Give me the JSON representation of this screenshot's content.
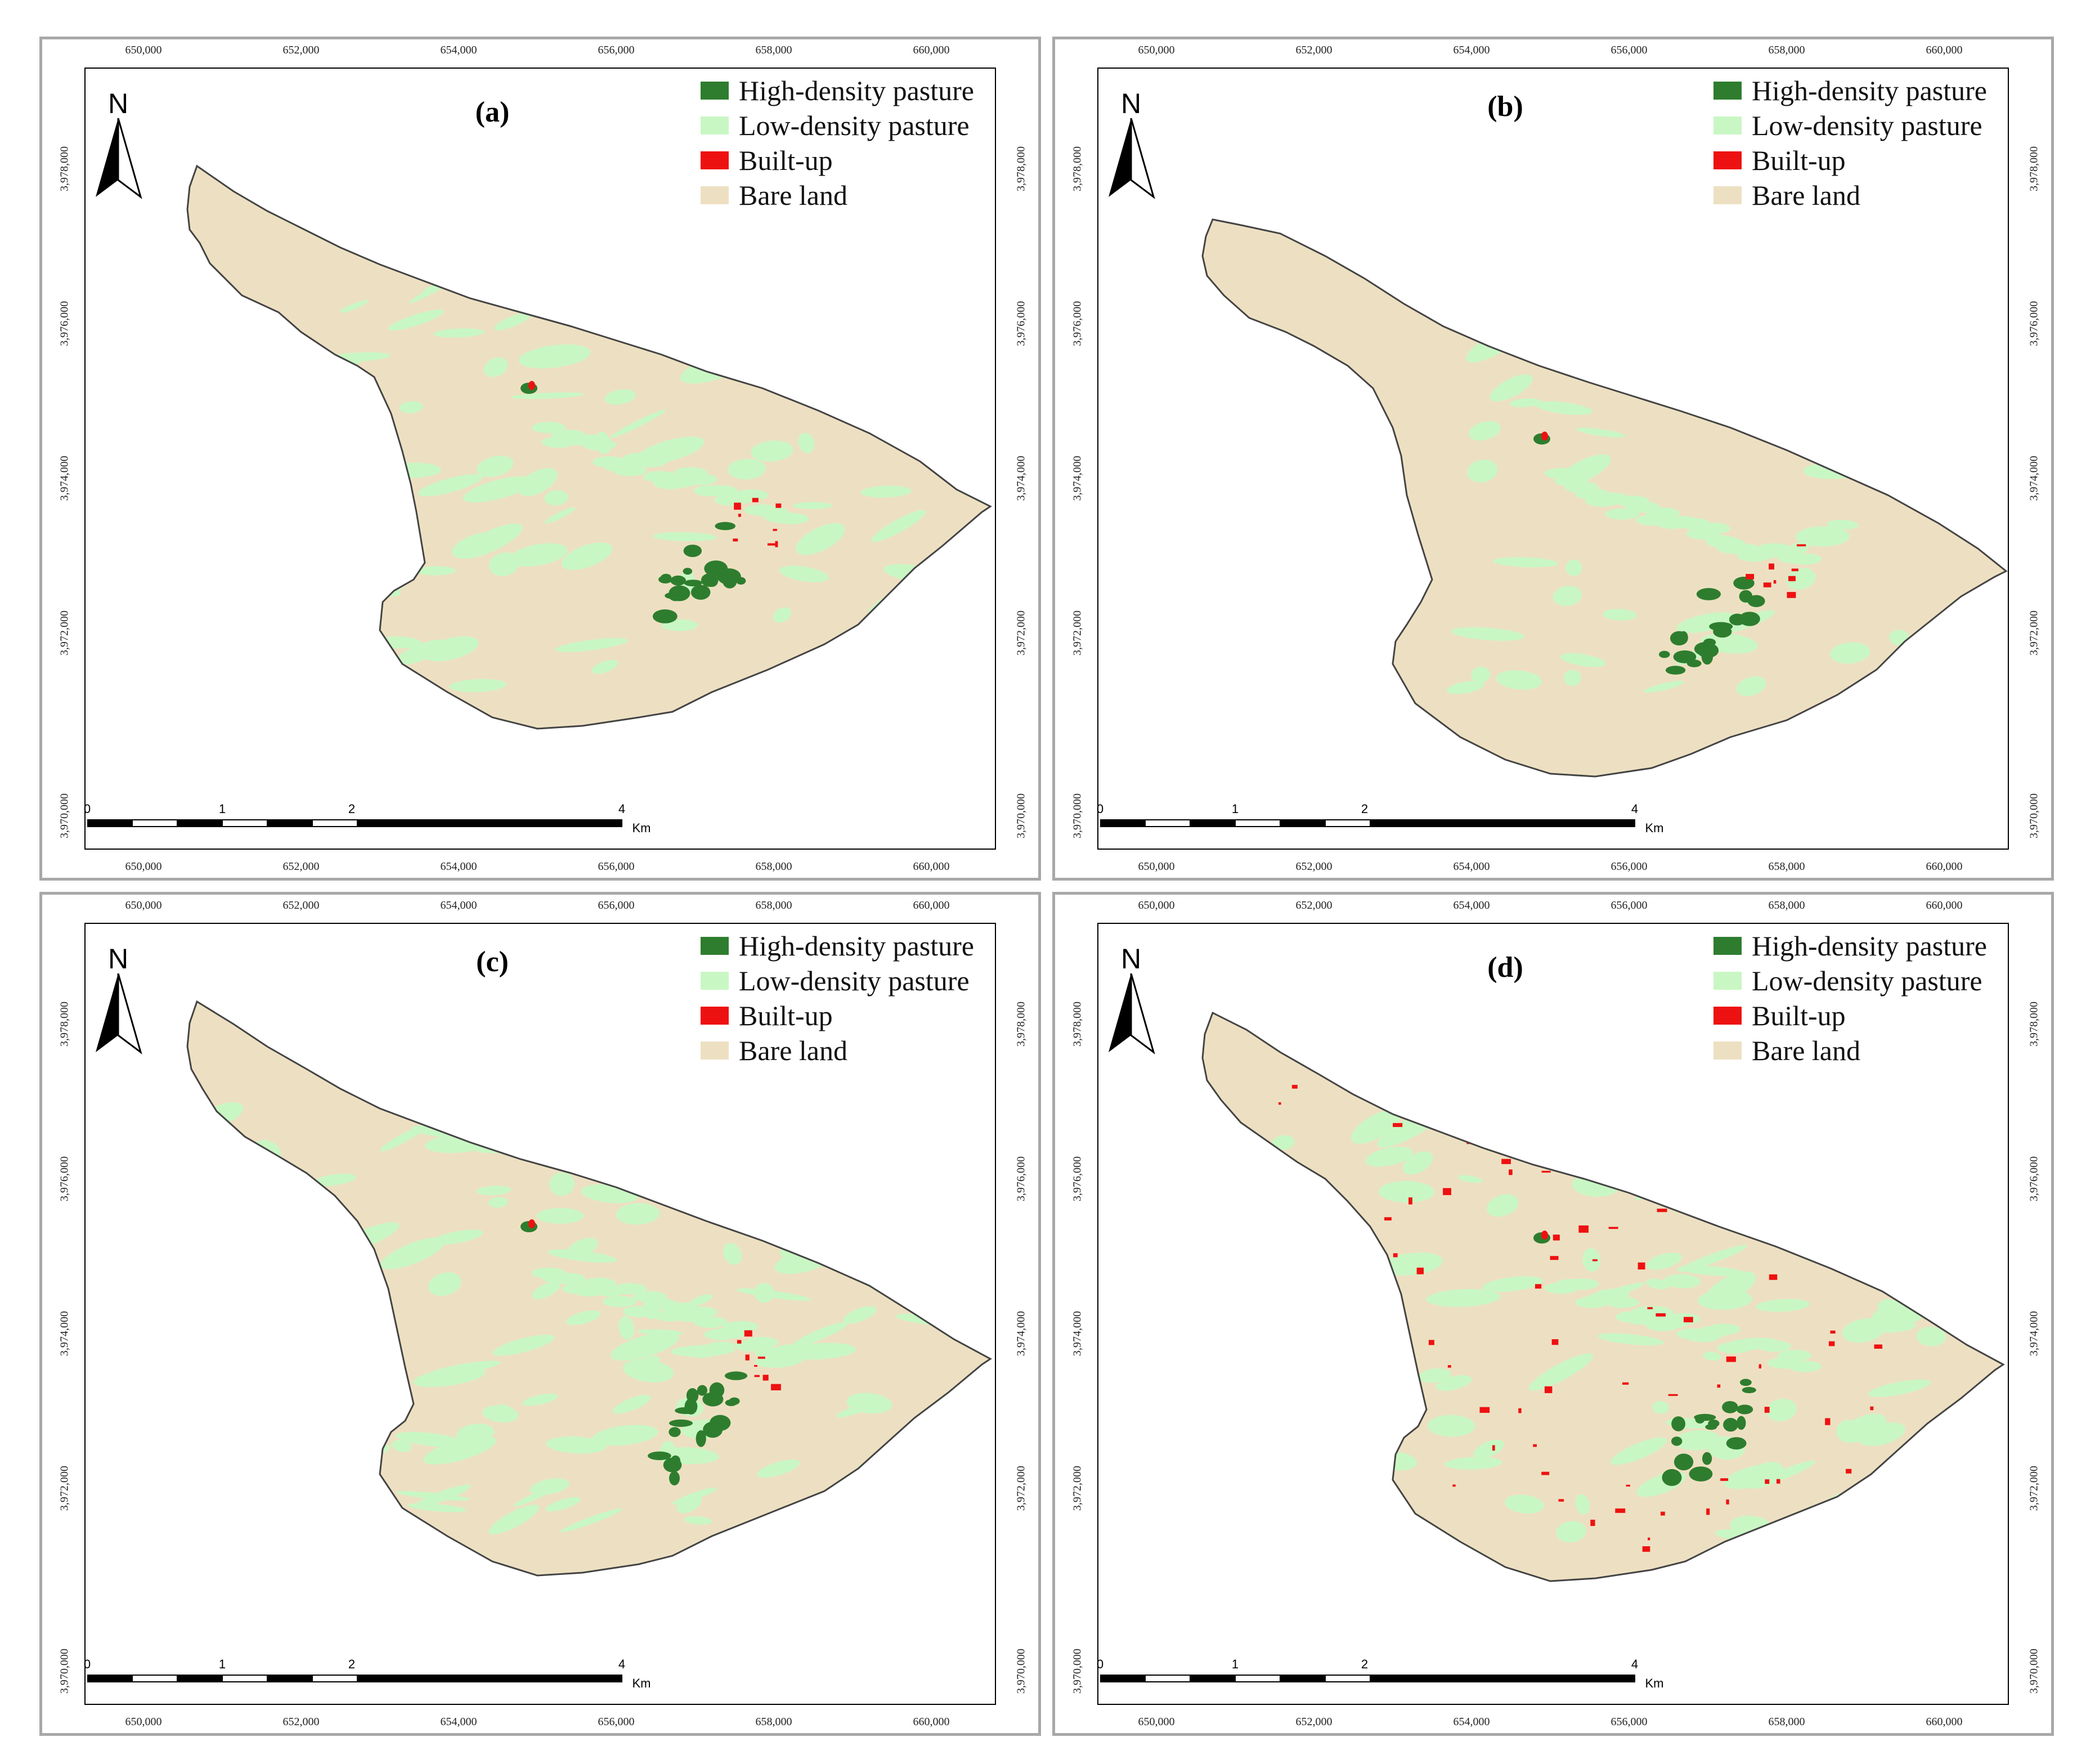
{
  "x_ticks": [
    "650,000",
    "652,000",
    "654,000",
    "656,000",
    "658,000",
    "660,000"
  ],
  "y_ticks": [
    "3,978,000",
    "3,976,000",
    "3,974,000",
    "3,972,000",
    "3,970,000"
  ],
  "north_label": "N",
  "scale": {
    "labels": [
      "0",
      "1",
      "2",
      "4"
    ],
    "unit": "Km"
  },
  "legend": [
    {
      "label": "High-density pasture",
      "color": "#2e7d2e"
    },
    {
      "label": "Low-density pasture",
      "color": "#c9f7c4"
    },
    {
      "label": "Built-up",
      "color": "#ee1111"
    },
    {
      "label": "Bare land",
      "color": "#ede0c2"
    }
  ],
  "panels": [
    {
      "label": "(a)"
    },
    {
      "label": "(b)"
    },
    {
      "label": "(c)"
    },
    {
      "label": "(d)"
    }
  ]
}
